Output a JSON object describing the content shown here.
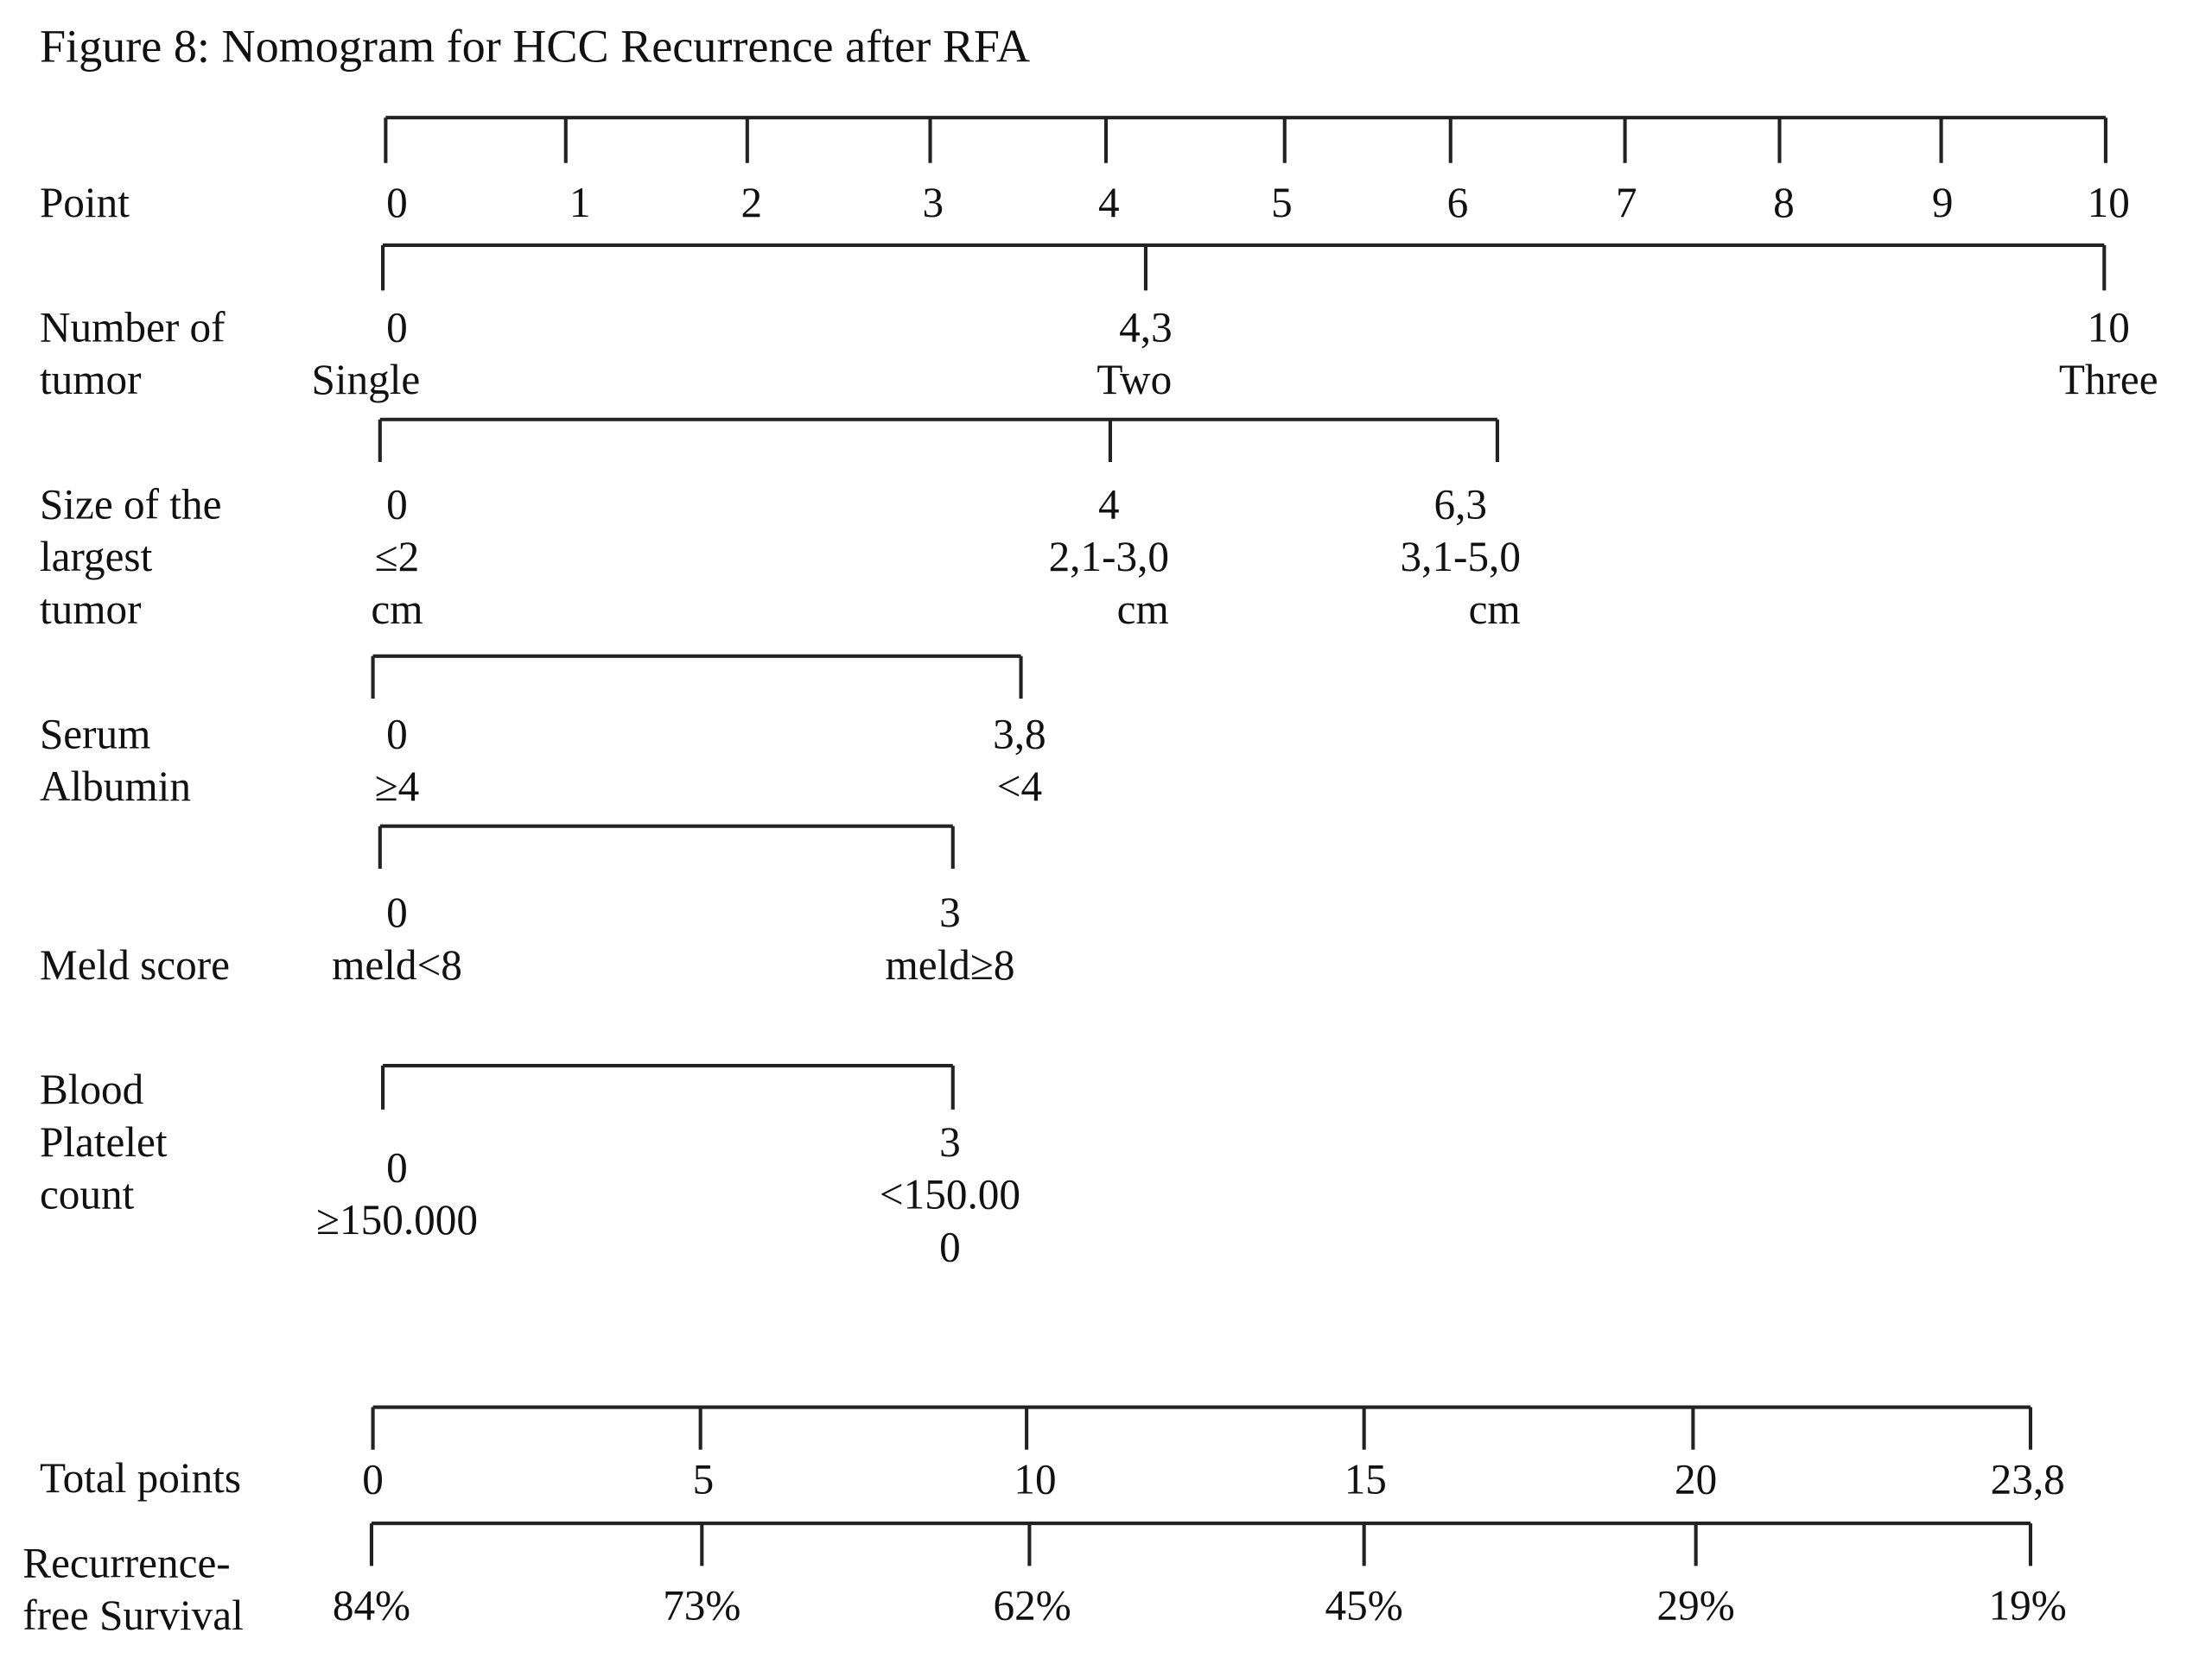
{
  "title": "Figure 8: Nomogram for HCC Recurrence after RFA",
  "rows": [
    {
      "label": [
        "Point"
      ],
      "ticks": [
        {
          "lines": [
            "0"
          ]
        },
        {
          "lines": [
            "1"
          ]
        },
        {
          "lines": [
            "2"
          ]
        },
        {
          "lines": [
            "3"
          ]
        },
        {
          "lines": [
            "4"
          ]
        },
        {
          "lines": [
            "5"
          ]
        },
        {
          "lines": [
            "6"
          ]
        },
        {
          "lines": [
            "7"
          ]
        },
        {
          "lines": [
            "8"
          ]
        },
        {
          "lines": [
            "9"
          ]
        },
        {
          "lines": [
            "10"
          ]
        }
      ]
    },
    {
      "label": [
        "Number of",
        "tumor"
      ],
      "ticks": [
        {
          "lines": [
            "0",
            "Single"
          ]
        },
        {
          "lines": [
            "4,3",
            "Two"
          ]
        },
        {
          "lines": [
            "10",
            "Three"
          ]
        }
      ]
    },
    {
      "label": [
        "Size of the",
        "largest",
        "tumor"
      ],
      "ticks": [
        {
          "lines": [
            "0",
            "≤2",
            "cm"
          ]
        },
        {
          "lines": [
            "4",
            "2,1-3,0",
            "cm"
          ]
        },
        {
          "lines": [
            "6,3",
            "3,1-5,0",
            "cm"
          ]
        }
      ]
    },
    {
      "label": [
        "Serum",
        "Albumin"
      ],
      "ticks": [
        {
          "lines": [
            "0",
            "≥4"
          ]
        },
        {
          "lines": [
            "3,8",
            "<4"
          ]
        }
      ]
    },
    {
      "label": [
        "Meld score"
      ],
      "ticks": [
        {
          "lines": [
            "0",
            "meld<8"
          ]
        },
        {
          "lines": [
            "3",
            "meld≥8"
          ]
        }
      ]
    },
    {
      "label": [
        "Blood",
        "Platelet",
        "count"
      ],
      "ticks": [
        {
          "lines": [
            "0",
            "≥150.000"
          ]
        },
        {
          "lines": [
            "3",
            "<150.00",
            "0"
          ]
        }
      ]
    },
    {
      "label": [
        "Total points"
      ],
      "ticks": [
        {
          "lines": [
            "0"
          ]
        },
        {
          "lines": [
            "5"
          ]
        },
        {
          "lines": [
            "10"
          ]
        },
        {
          "lines": [
            "15"
          ]
        },
        {
          "lines": [
            "20"
          ]
        },
        {
          "lines": [
            "23,8"
          ]
        }
      ]
    },
    {
      "label": [
        "Recurrence-",
        "free Survival"
      ],
      "ticks": [
        {
          "lines": [
            "84%"
          ]
        },
        {
          "lines": [
            "73%"
          ]
        },
        {
          "lines": [
            "62%"
          ]
        },
        {
          "lines": [
            "45%"
          ]
        },
        {
          "lines": [
            "29%"
          ]
        },
        {
          "lines": [
            "19%"
          ]
        }
      ]
    }
  ]
}
